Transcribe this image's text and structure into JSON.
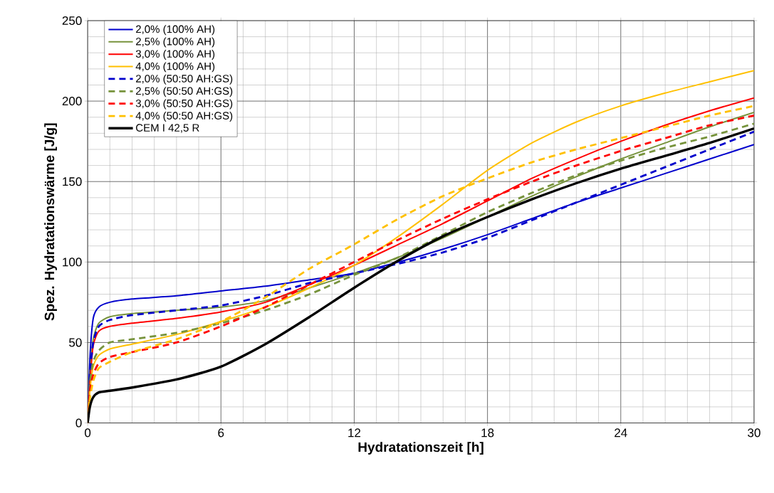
{
  "chart_data": {
    "type": "line",
    "xlabel": "Hydratationszeit [h]",
    "ylabel": "Spez. Hydratationswärme [J/g]",
    "xlim": [
      0,
      30
    ],
    "ylim": [
      0,
      250
    ],
    "xticks": [
      0,
      6,
      12,
      18,
      24,
      30
    ],
    "yticks": [
      0,
      50,
      100,
      150,
      200,
      250
    ],
    "grid": true,
    "legend": "top left",
    "marker": "none",
    "x": [
      0,
      0.1,
      0.25,
      0.5,
      1,
      2,
      4,
      6,
      8,
      10,
      12,
      14,
      16,
      18,
      20,
      22,
      24,
      26,
      28,
      30
    ],
    "series": [
      {
        "name": "2,0% (100% AH)",
        "color": "#0000cc",
        "line_style": "solid",
        "values": [
          0,
          40,
          65,
          72,
          75,
          77,
          79,
          82,
          85,
          89,
          93,
          100,
          108,
          117,
          127,
          137,
          146,
          155,
          164,
          173
        ]
      },
      {
        "name": "2,5% (100% AH)",
        "color": "#77933c",
        "line_style": "solid",
        "values": [
          0,
          30,
          52,
          62,
          66,
          68,
          70,
          72,
          76,
          84,
          93,
          103,
          115,
          128,
          141,
          153,
          164,
          174,
          184,
          193
        ]
      },
      {
        "name": "3,0% (100% AH)",
        "color": "#ff0000",
        "line_style": "solid",
        "values": [
          0,
          25,
          48,
          57,
          60,
          62,
          65,
          69,
          75,
          86,
          98,
          111,
          124,
          138,
          152,
          164,
          175,
          185,
          194,
          202
        ]
      },
      {
        "name": "4,0% (100% AH)",
        "color": "#ffc000",
        "line_style": "solid",
        "values": [
          0,
          20,
          35,
          42,
          46,
          49,
          55,
          63,
          72,
          84,
          98,
          116,
          136,
          157,
          174,
          187,
          197,
          205,
          212,
          219
        ]
      },
      {
        "name": "2,0% (50:50 AH:GS)",
        "color": "#0000cc",
        "line_style": "dashed",
        "values": [
          0,
          30,
          50,
          60,
          64,
          67,
          70,
          73,
          79,
          87,
          93,
          99,
          106,
          115,
          126,
          137,
          148,
          159,
          170,
          181
        ]
      },
      {
        "name": "2,5% (50:50 AH:GS)",
        "color": "#77933c",
        "line_style": "dashed",
        "values": [
          0,
          25,
          38,
          45,
          50,
          52,
          56,
          62,
          70,
          80,
          92,
          103,
          117,
          131,
          143,
          154,
          163,
          171,
          178,
          186
        ]
      },
      {
        "name": "3,0% (50:50 AH:GS)",
        "color": "#ff0000",
        "line_style": "dashed",
        "values": [
          0,
          20,
          30,
          37,
          41,
          44,
          50,
          60,
          72,
          86,
          100,
          114,
          127,
          139,
          150,
          160,
          169,
          177,
          185,
          191
        ]
      },
      {
        "name": "4,0% (50:50 AH:GS)",
        "color": "#ffc000",
        "line_style": "dashed",
        "values": [
          0,
          15,
          26,
          34,
          38,
          44,
          52,
          63,
          78,
          96,
          111,
          127,
          141,
          152,
          162,
          170,
          177,
          184,
          191,
          197
        ]
      },
      {
        "name": "CEM I 42,5 R",
        "color": "#000000",
        "line_style": "solid",
        "values": [
          0,
          10,
          16,
          19,
          20,
          22,
          27,
          35,
          49,
          66,
          84,
          101,
          116,
          128,
          139,
          149,
          158,
          166,
          174,
          183
        ]
      }
    ]
  }
}
